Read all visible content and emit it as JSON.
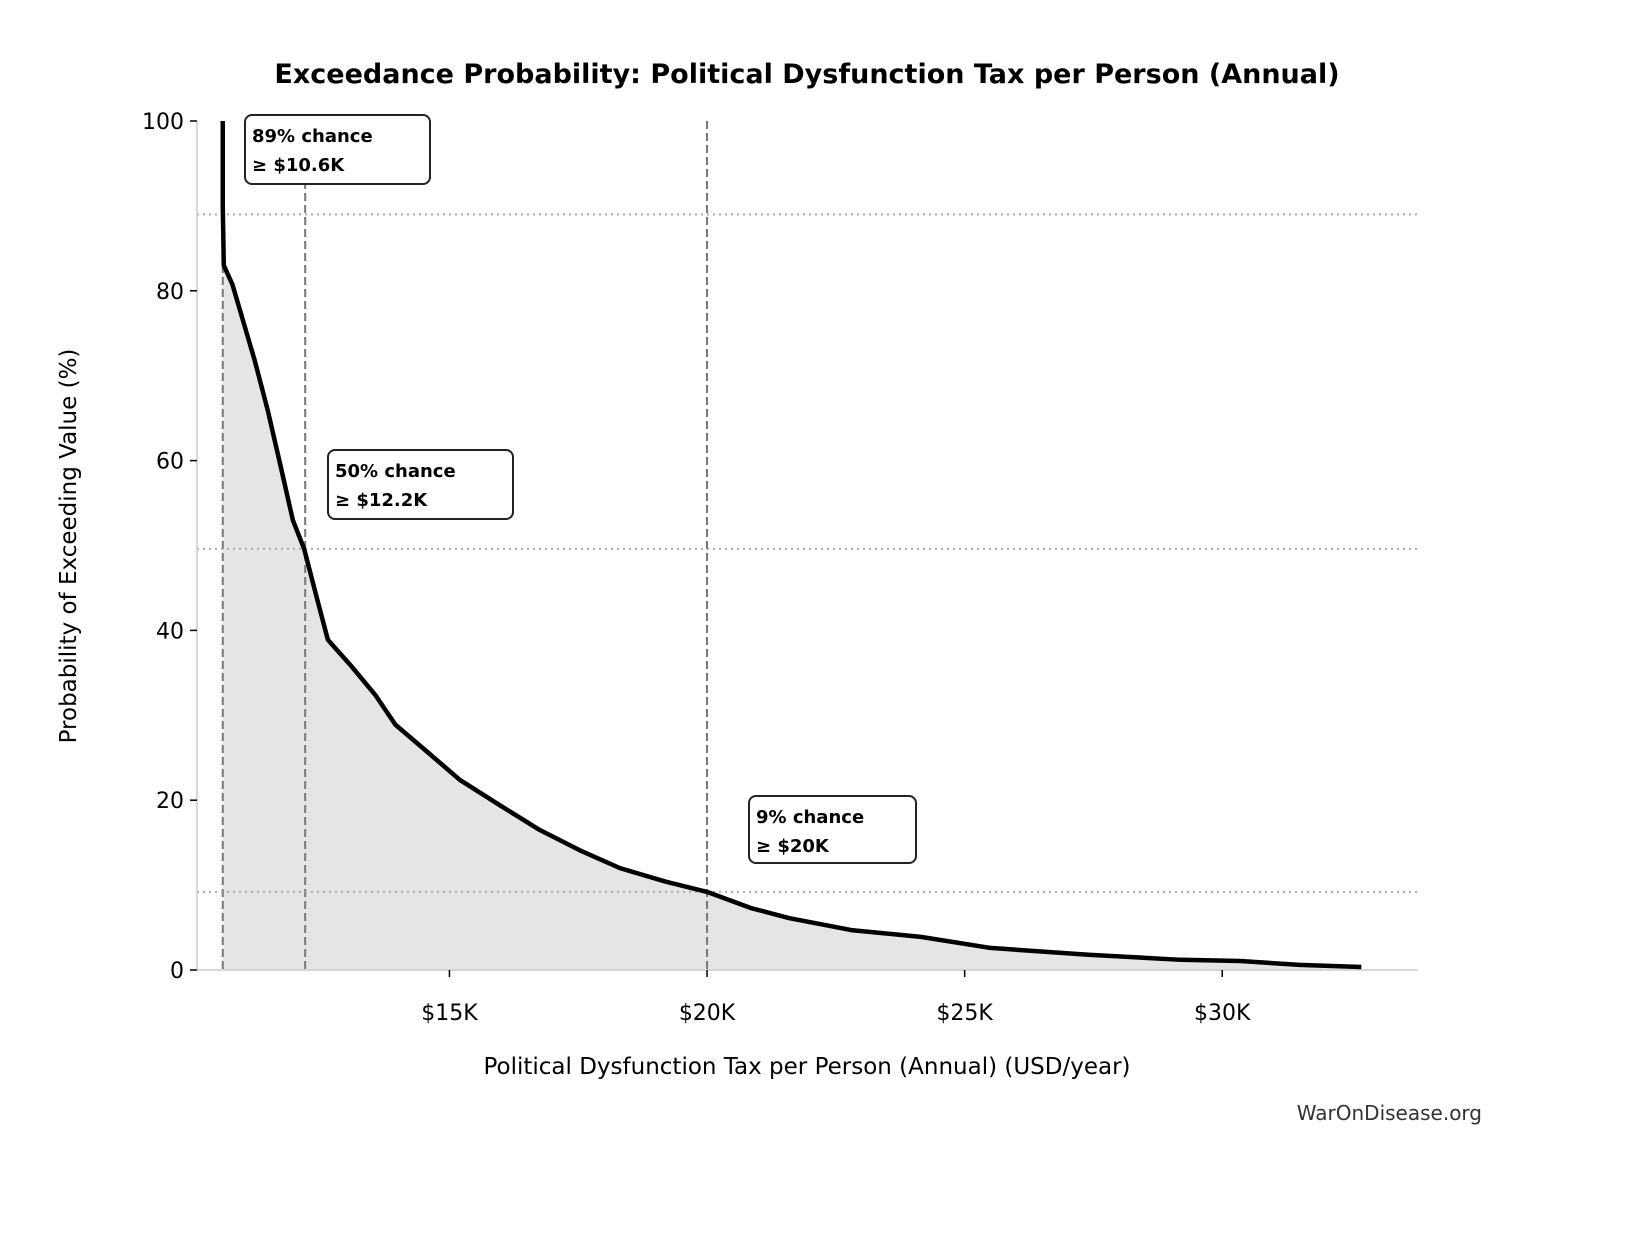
{
  "chart_data": {
    "type": "area",
    "title": "Exceedance Probability: Political Dysfunction Tax per Person (Annual)",
    "xlabel": "Political Dysfunction Tax per Person (Annual) (USD/year)",
    "ylabel": "Probability of Exceeding Value (%)",
    "xlim": [
      10.1,
      33.8
    ],
    "ylim": [
      0,
      100
    ],
    "x_unit": "thousand USD",
    "x_ticks": [
      15,
      20,
      25,
      30
    ],
    "x_tick_labels": [
      "$15K",
      "$20K",
      "$25K",
      "$30K"
    ],
    "y_ticks": [
      0,
      20,
      40,
      60,
      80,
      100
    ],
    "y_tick_labels": [
      "0",
      "20",
      "40",
      "60",
      "80",
      "100"
    ],
    "grid": false,
    "line_color": "#000000",
    "fill_color": "#e5e5e5",
    "series": [
      {
        "x": [
          10.6,
          10.6,
          10.62,
          10.79,
          11.22,
          11.47,
          11.74,
          11.96,
          12.18,
          12.41,
          12.64,
          13.08,
          13.56,
          13.95,
          14.53,
          15.2,
          15.98,
          16.75,
          17.53,
          18.31,
          19.2,
          20.0,
          20.85,
          21.6,
          22.8,
          24.15,
          25.5,
          27.4,
          29.2,
          30.35,
          31.5,
          32.7
        ],
        "y": [
          100,
          90,
          83,
          80.7,
          71.8,
          66,
          58.9,
          53,
          49.6,
          44.2,
          38.9,
          35.9,
          32.4,
          28.9,
          25.9,
          22.4,
          19.4,
          16.5,
          14.1,
          12.0,
          10.4,
          9.2,
          7.3,
          6.1,
          4.7,
          3.9,
          2.6,
          1.8,
          1.2,
          1.06,
          0.6,
          0.35
        ]
      }
    ],
    "reference_lines": [
      {
        "x": 10.6,
        "y": 89
      },
      {
        "x": 12.2,
        "y": 49.6
      },
      {
        "x": 20.0,
        "y": 9.2
      }
    ],
    "annotations": [
      {
        "line1": "89% chance",
        "line2": "≥ $10.6K",
        "x": 10.6,
        "y": 89
      },
      {
        "line1": "50% chance",
        "line2": "≥ $12.2K",
        "x": 12.2,
        "y": 50
      },
      {
        "line1": "9% chance",
        "line2": "≥ $20K",
        "x": 20.0,
        "y": 9
      }
    ],
    "watermark": "WarOnDisease.org"
  }
}
